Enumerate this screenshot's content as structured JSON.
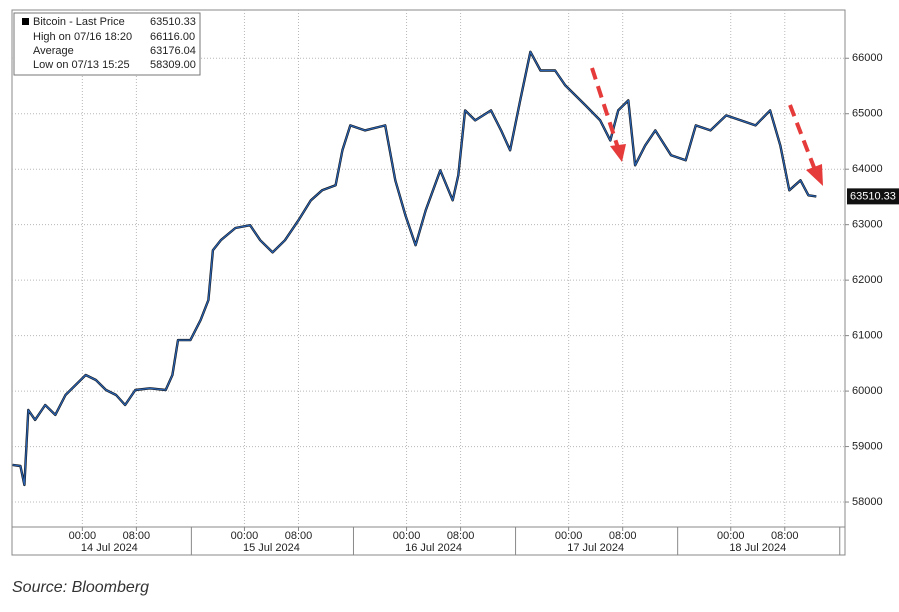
{
  "chart_data": {
    "type": "line",
    "stats": [
      {
        "label": "Bitcoin - Last Price",
        "value": 63510.33
      },
      {
        "label": "High on 07/16 18:20",
        "value": 66116,
        "value_label": "66116.00"
      },
      {
        "label": "Average",
        "value": 63176.04
      },
      {
        "label": "Low on 07/13 15:25",
        "value": 58309,
        "value_label": "58309.00"
      }
    ],
    "x": [
      "2024-07-13 13:40",
      "2024-07-13 14:50",
      "2024-07-13 15:25",
      "2024-07-13 16:00",
      "2024-07-13 17:00",
      "2024-07-13 18:30",
      "2024-07-13 20:00",
      "2024-07-13 21:30",
      "2024-07-13 23:00",
      "2024-07-14 00:30",
      "2024-07-14 02:00",
      "2024-07-14 03:30",
      "2024-07-14 05:00",
      "2024-07-14 06:20",
      "2024-07-14 07:50",
      "2024-07-14 10:00",
      "2024-07-14 12:20",
      "2024-07-14 13:20",
      "2024-07-14 14:10",
      "2024-07-14 16:00",
      "2024-07-14 17:30",
      "2024-07-14 18:40",
      "2024-07-14 19:20",
      "2024-07-14 20:30",
      "2024-07-14 22:40",
      "2024-07-15 00:50",
      "2024-07-15 02:20",
      "2024-07-15 04:10",
      "2024-07-15 06:00",
      "2024-07-15 08:00",
      "2024-07-15 09:50",
      "2024-07-15 11:30",
      "2024-07-15 13:30",
      "2024-07-15 14:30",
      "2024-07-15 15:40",
      "2024-07-15 17:50",
      "2024-07-15 20:50",
      "2024-07-15 22:20",
      "2024-07-15 23:50",
      "2024-07-16 01:20",
      "2024-07-16 02:50",
      "2024-07-16 05:00",
      "2024-07-16 06:50",
      "2024-07-16 07:40",
      "2024-07-16 08:40",
      "2024-07-16 10:10",
      "2024-07-16 12:30",
      "2024-07-16 14:00",
      "2024-07-16 15:20",
      "2024-07-16 16:50",
      "2024-07-16 18:20",
      "2024-07-16 19:50",
      "2024-07-16 22:00",
      "2024-07-16 23:30",
      "2024-07-17 01:00",
      "2024-07-17 02:30",
      "2024-07-17 04:40",
      "2024-07-17 06:10",
      "2024-07-17 07:20",
      "2024-07-17 08:50",
      "2024-07-17 09:50",
      "2024-07-17 11:20",
      "2024-07-17 12:50",
      "2024-07-17 15:10",
      "2024-07-17 17:20",
      "2024-07-17 18:50",
      "2024-07-17 21:00",
      "2024-07-17 23:20",
      "2024-07-18 01:30",
      "2024-07-18 03:40",
      "2024-07-18 05:50",
      "2024-07-18 07:20",
      "2024-07-18 08:40",
      "2024-07-18 10:20",
      "2024-07-18 11:30",
      "2024-07-18 12:40"
    ],
    "series": [
      {
        "name": "Bitcoin - Last Price",
        "color": "#2a62b0",
        "values": [
          58670,
          58650,
          58309,
          59660,
          59480,
          59750,
          59570,
          59930,
          60110,
          60290,
          60200,
          60020,
          59930,
          59750,
          60020,
          60050,
          60020,
          60290,
          60920,
          60920,
          61280,
          61640,
          62540,
          62720,
          62940,
          62990,
          62720,
          62500,
          62720,
          63080,
          63440,
          63620,
          63710,
          64340,
          64790,
          64700,
          64790,
          63800,
          63170,
          62630,
          63260,
          63980,
          63440,
          63890,
          65060,
          64880,
          65060,
          64700,
          64340,
          65240,
          66116,
          65780,
          65780,
          65510,
          65330,
          65150,
          64880,
          64520,
          65060,
          65240,
          64070,
          64430,
          64700,
          64250,
          64160,
          64790,
          64700,
          64970,
          64880,
          64790,
          65060,
          64430,
          63620,
          63800,
          63530,
          63510.33
        ]
      }
    ],
    "xlim": [
      "2024-07-13 13:35",
      "2024-07-18 16:55"
    ],
    "xticks": [
      {
        "value": "2024-07-14 00:00",
        "label": "00:00"
      },
      {
        "value": "2024-07-14 08:00",
        "label": "08:00"
      },
      {
        "value": "2024-07-15 00:00",
        "label": "00:00"
      },
      {
        "value": "2024-07-15 08:00",
        "label": "08:00"
      },
      {
        "value": "2024-07-16 00:00",
        "label": "00:00"
      },
      {
        "value": "2024-07-16 08:00",
        "label": "08:00"
      },
      {
        "value": "2024-07-17 00:00",
        "label": "00:00"
      },
      {
        "value": "2024-07-17 08:00",
        "label": "08:00"
      },
      {
        "value": "2024-07-18 00:00",
        "label": "00:00"
      },
      {
        "value": "2024-07-18 08:00",
        "label": "08:00"
      }
    ],
    "xgroups": [
      {
        "value": "2024-07-14 04:00",
        "label": "14 Jul 2024"
      },
      {
        "value": "2024-07-15 04:00",
        "label": "15 Jul 2024"
      },
      {
        "value": "2024-07-16 04:00",
        "label": "16 Jul 2024"
      },
      {
        "value": "2024-07-17 04:00",
        "label": "17 Jul 2024"
      },
      {
        "value": "2024-07-18 04:00",
        "label": "18 Jul 2024"
      }
    ],
    "ylim": [
      57550,
      66870
    ],
    "yticks": [
      58000,
      59000,
      60000,
      61000,
      62000,
      63000,
      64000,
      65000,
      66000
    ],
    "grid": true
  },
  "source": "Source: Bloomberg"
}
